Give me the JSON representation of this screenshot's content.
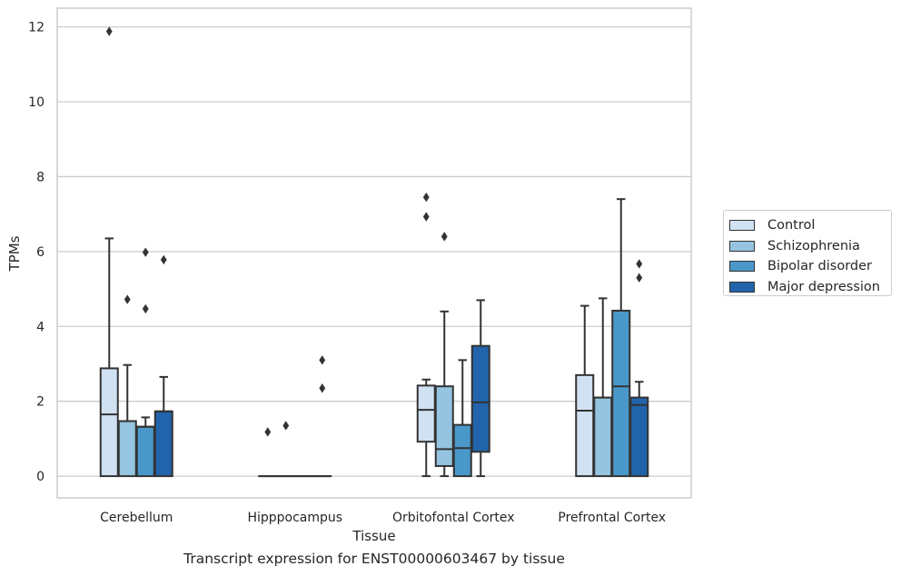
{
  "chart_data": {
    "type": "boxplot",
    "caption": "Transcript expression for ENST00000603467 by tissue",
    "xlabel": "Tissue",
    "ylabel": "TPMs",
    "ylim": [
      -0.58,
      12.5
    ],
    "yticks": [
      "0",
      "2",
      "4",
      "6",
      "8",
      "10",
      "12"
    ],
    "grid": true,
    "legend_position": "right",
    "categories": [
      "Cerebellum",
      "Hipppocampus",
      "Orbitofontal Cortex",
      "Prefrontal Cortex"
    ],
    "series": [
      {
        "name": "Control",
        "color": "#d0e1f2",
        "boxes": [
          {
            "min": 0,
            "q1": 0,
            "median": 1.65,
            "q3": 2.88,
            "max": 6.35,
            "outliers": [
              11.88
            ]
          },
          {
            "min": 0,
            "q1": 0,
            "median": 0,
            "q3": 0,
            "max": 0,
            "outliers": [
              1.18
            ]
          },
          {
            "min": 0,
            "q1": 0.92,
            "median": 1.77,
            "q3": 2.42,
            "max": 2.58,
            "outliers": [
              6.93,
              7.45
            ]
          },
          {
            "min": 0,
            "q1": 0,
            "median": 1.75,
            "q3": 2.7,
            "max": 4.55,
            "outliers": []
          }
        ]
      },
      {
        "name": "Schizophrenia",
        "color": "#94c4df",
        "boxes": [
          {
            "min": 0,
            "q1": 0,
            "median": 1.47,
            "q3": 1.47,
            "max": 2.97,
            "outliers": [
              4.72
            ]
          },
          {
            "min": 0,
            "q1": 0,
            "median": 0,
            "q3": 0,
            "max": 0,
            "outliers": [
              1.35
            ]
          },
          {
            "min": 0,
            "q1": 0.27,
            "median": 0.72,
            "q3": 2.4,
            "max": 4.4,
            "outliers": [
              6.4
            ]
          },
          {
            "min": 0,
            "q1": 0,
            "median": 2.1,
            "q3": 2.1,
            "max": 4.75,
            "outliers": []
          }
        ]
      },
      {
        "name": "Bipolar disorder",
        "color": "#4a98c9",
        "boxes": [
          {
            "min": 0,
            "q1": 0,
            "median": 1.32,
            "q3": 1.32,
            "max": 1.57,
            "outliers": [
              4.47,
              5.98
            ]
          },
          {
            "min": 0,
            "q1": 0,
            "median": 0,
            "q3": 0,
            "max": 0,
            "outliers": []
          },
          {
            "min": 0,
            "q1": 0,
            "median": 0.75,
            "q3": 1.37,
            "max": 3.1,
            "outliers": []
          },
          {
            "min": 0,
            "q1": 0,
            "median": 2.4,
            "q3": 4.42,
            "max": 7.4,
            "outliers": []
          }
        ]
      },
      {
        "name": "Major depression",
        "color": "#2164ab",
        "boxes": [
          {
            "min": 0,
            "q1": 0,
            "median": 1.73,
            "q3": 1.73,
            "max": 2.65,
            "outliers": [
              5.78
            ]
          },
          {
            "min": 0,
            "q1": 0,
            "median": 0,
            "q3": 0,
            "max": 0,
            "outliers": [
              2.35,
              3.1
            ]
          },
          {
            "min": 0,
            "q1": 0.65,
            "median": 1.97,
            "q3": 3.48,
            "max": 4.7,
            "outliers": []
          },
          {
            "min": 0,
            "q1": 0,
            "median": 1.9,
            "q3": 2.1,
            "max": 2.52,
            "outliers": [
              5.3,
              5.67
            ]
          }
        ]
      }
    ]
  }
}
